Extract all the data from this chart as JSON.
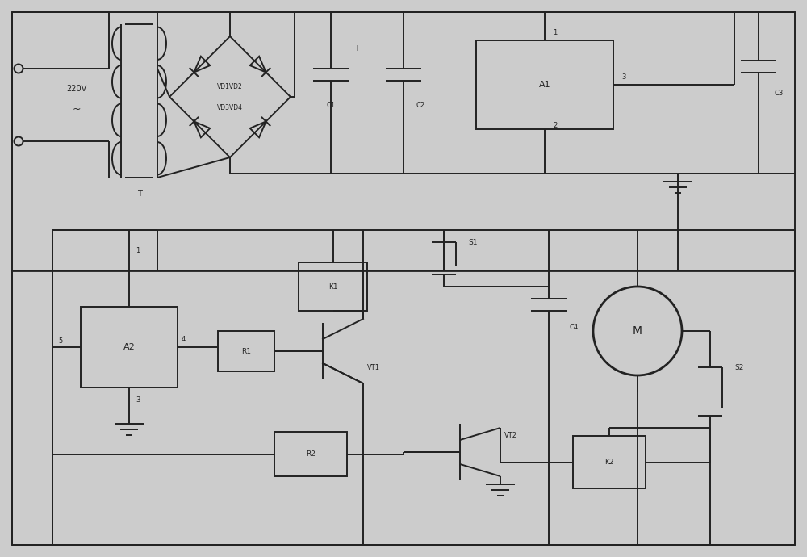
{
  "bg_color": "#cccccc",
  "line_color": "#222222",
  "lw": 1.4,
  "lw2": 2.0,
  "fig_width": 10.0,
  "fig_height": 6.9,
  "xlim": [
    0,
    100
  ],
  "ylim": [
    0,
    69
  ]
}
